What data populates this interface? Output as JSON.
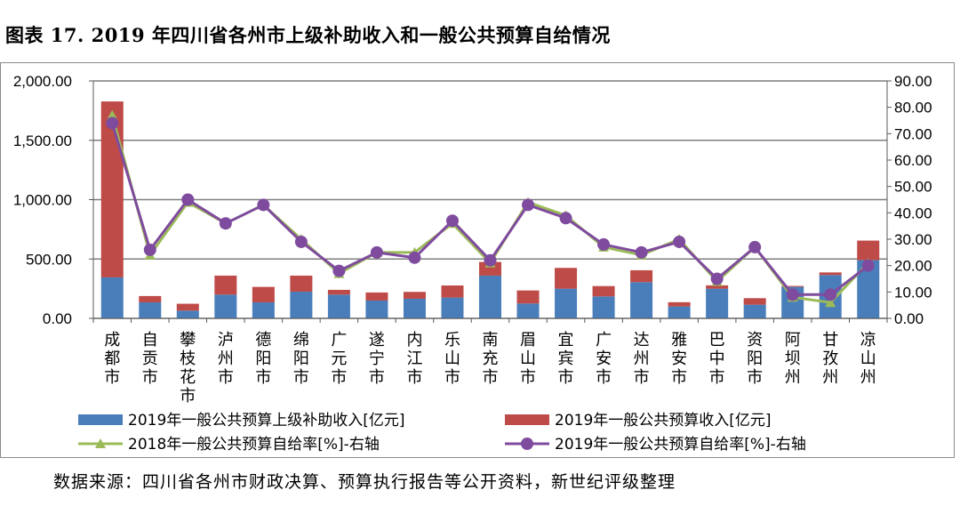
{
  "figure": {
    "title": "图表 17. 2019 年四川省各州市上级补助收入和一般公共预算自给情况",
    "source": "数据来源：四川省各州市财政决算、预算执行报告等公开资料，新世纪评级整理"
  },
  "colors": {
    "subsidy": "#4a7ebb",
    "budget": "#be4b48",
    "rate2018": "#9bbb59",
    "rate2019": "#7f4b9e",
    "grid": "#7f7f7f"
  },
  "chart_data": {
    "type": "bar",
    "title": "图表 17. 2019 年四川省各州市上级补助收入和一般公共预算自给情况",
    "categories": [
      "成都市",
      "自贡市",
      "攀枝花市",
      "泸州市",
      "德阳市",
      "绵阳市",
      "广元市",
      "遂宁市",
      "内江市",
      "乐山市",
      "南充市",
      "眉山市",
      "宜宾市",
      "广安市",
      "达州市",
      "雅安市",
      "巴中市",
      "资阳市",
      "阿坝州",
      "甘孜州",
      "凉山州"
    ],
    "left_axis": {
      "min": 0,
      "max": 2000,
      "ticks": [
        "0.00",
        "500.00",
        "1,000.00",
        "1,500.00",
        "2,000.00"
      ],
      "tick_values": [
        0,
        500,
        1000,
        1500,
        2000
      ]
    },
    "right_axis": {
      "min": 0,
      "max": 90,
      "ticks": [
        "0.00",
        "10.00",
        "20.00",
        "30.00",
        "40.00",
        "50.00",
        "60.00",
        "70.00",
        "80.00",
        "90.00"
      ],
      "tick_values": [
        0,
        10,
        20,
        30,
        40,
        50,
        60,
        70,
        80,
        90
      ]
    },
    "series": [
      {
        "name": "2019年一般公共预算上级补助收入[亿元]",
        "type": "bar",
        "axis": "left",
        "values": [
          345,
          135,
          65,
          200,
          135,
          225,
          200,
          150,
          165,
          175,
          360,
          125,
          250,
          185,
          305,
          100,
          250,
          115,
          265,
          365,
          490
        ]
      },
      {
        "name": "2019年一般公共预算收入[亿元]",
        "type": "bar",
        "axis": "left",
        "values": [
          1482,
          53,
          58,
          160,
          130,
          135,
          40,
          68,
          58,
          102,
          115,
          110,
          175,
          87,
          100,
          36,
          28,
          55,
          8,
          22,
          165
        ]
      },
      {
        "name": "2018年一般公共预算自给率[%]-右轴",
        "type": "line",
        "axis": "right",
        "values": [
          77,
          24,
          44,
          36,
          43,
          30,
          17,
          25,
          25,
          36,
          21,
          44,
          39,
          27,
          24,
          30,
          14,
          27,
          8,
          6,
          21
        ]
      },
      {
        "name": "2019年一般公共预算自给率[%]-右轴",
        "type": "line",
        "axis": "right",
        "values": [
          74,
          26,
          45,
          36,
          43,
          29,
          18,
          25,
          23,
          37,
          22,
          43,
          38,
          28,
          25,
          29,
          15,
          27,
          9,
          9,
          20
        ]
      }
    ],
    "legend": [
      "2019年一般公共预算上级补助收入[亿元]",
      "2019年一般公共预算收入[亿元]",
      "2018年一般公共预算自给率[%]-右轴",
      "2019年一般公共预算自给率[%]-右轴"
    ],
    "grid": true,
    "legend_position": "bottom"
  }
}
